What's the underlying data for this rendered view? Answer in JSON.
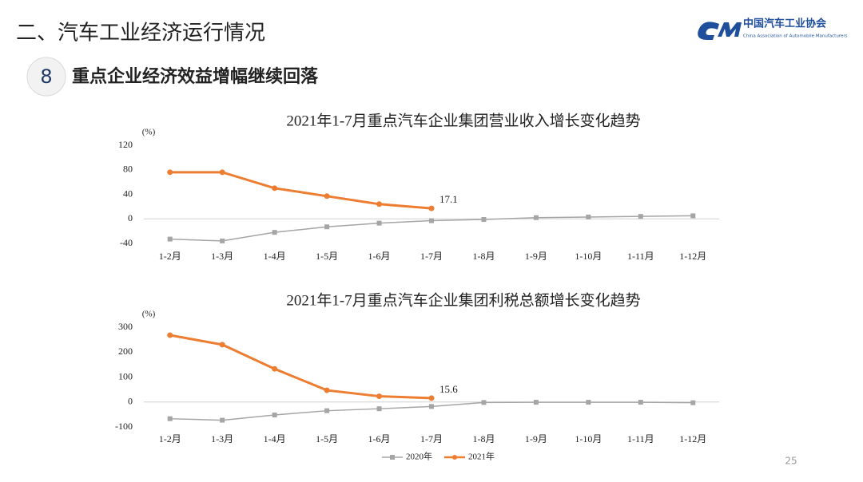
{
  "header": {
    "title": "二、汽车工业经济运行情况"
  },
  "logo": {
    "name": "中国汽车工业协会",
    "subtitle": "China Association of Automobile Manufacturers"
  },
  "section": {
    "number": "8",
    "title": "重点企业经济效益增幅继续回落"
  },
  "page_number": "25",
  "chart_data": [
    {
      "type": "line",
      "title": "2021年1-7月重点汽车企业集团营业收入增长变化趋势",
      "y_label": "(%)",
      "categories": [
        "1-2月",
        "1-3月",
        "1-4月",
        "1-5月",
        "1-6月",
        "1-7月",
        "1-8月",
        "1-9月",
        "1-10月",
        "1-11月",
        "1-12月"
      ],
      "series": [
        {
          "color": "#a5a5a5",
          "values": [
            -33,
            -36,
            -22,
            -13,
            -7,
            -3,
            -1,
            2,
            3,
            4,
            5
          ]
        },
        {
          "color": "#ed7d31",
          "values": [
            76,
            76,
            50,
            37,
            24,
            17.1,
            null,
            null,
            null,
            null,
            null
          ]
        }
      ],
      "ylim": [
        -40,
        120
      ],
      "yticks": [
        -40,
        0,
        40,
        80,
        120
      ],
      "grid": false
    },
    {
      "type": "line",
      "title": "2021年1-7月重点汽车企业集团利税总额增长变化趋势",
      "y_label": "(%)",
      "categories": [
        "1-2月",
        "1-3月",
        "1-4月",
        "1-5月",
        "1-6月",
        "1-7月",
        "1-8月",
        "1-9月",
        "1-10月",
        "1-11月",
        "1-12月"
      ],
      "series": [
        {
          "name": "2020年",
          "color": "#a5a5a5",
          "values": [
            -67,
            -73,
            -52,
            -35,
            -27,
            -18,
            -2,
            -1,
            -1,
            -1,
            -3
          ]
        },
        {
          "name": "2021年",
          "color": "#ed7d31",
          "values": [
            268,
            230,
            133,
            47,
            23,
            15.6,
            null,
            null,
            null,
            null,
            null
          ]
        }
      ],
      "ylim": [
        -100,
        300
      ],
      "yticks": [
        -100,
        0,
        100,
        200,
        300
      ],
      "grid": false,
      "legend": "bottom"
    }
  ]
}
